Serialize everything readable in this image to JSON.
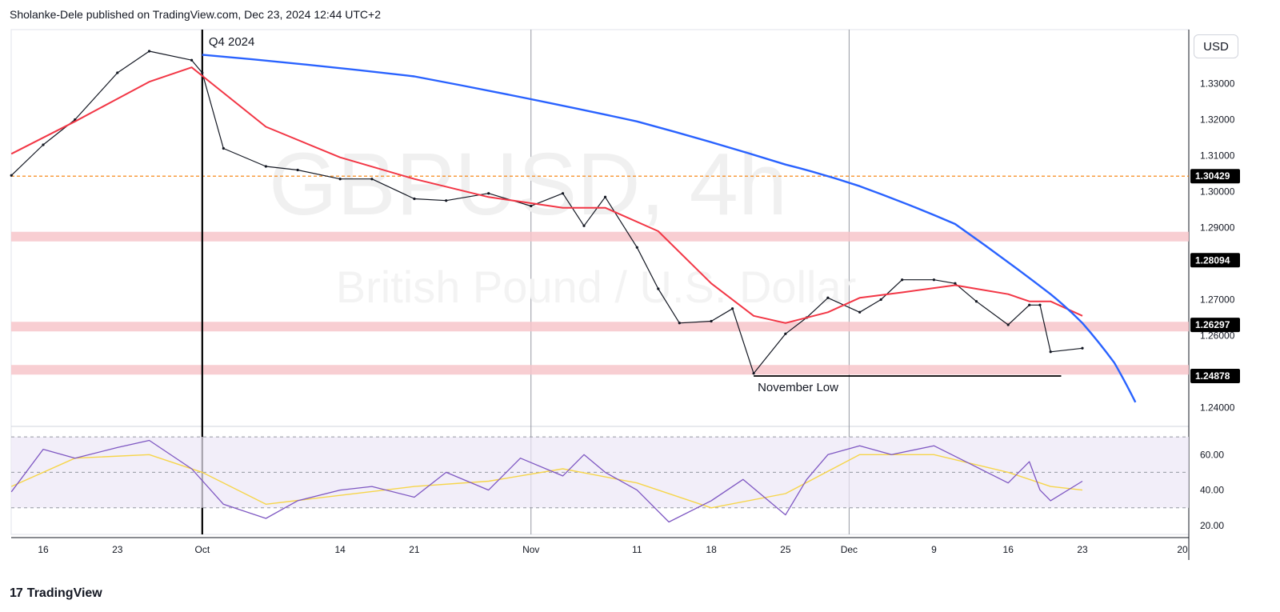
{
  "header": {
    "text": "Sholanke-Dele published on TradingView.com, Dec 23, 2024 12:44 UTC+2"
  },
  "footer": {
    "logo_text": "TradingView",
    "logo_icon": "tradingview-logo-icon"
  },
  "currency_button": {
    "label": "USD"
  },
  "watermark": {
    "symbol": "GBPUSD, 4h",
    "description": "British Pound / U.S. Dollar"
  },
  "annotations": {
    "quarter_label": "Q4 2024",
    "low_label": "November Low"
  },
  "colors": {
    "price": "#131722",
    "ema": "#f23645",
    "curve": "#2962ff",
    "zone": "#f7c5ca",
    "dashed_level": "#f57c00",
    "rsi": "#7e57c2",
    "rsi_ma": "#f6d54a",
    "rsi_band": "#ece7f7"
  },
  "chart_data": [
    {
      "type": "line",
      "title": "GBPUSD, 4h",
      "ylim": [
        1.235,
        1.345
      ],
      "y_ticks": [
        "1.33000",
        "1.32000",
        "1.31000",
        "1.30000",
        "1.29000",
        "1.27000",
        "1.26000",
        "1.24000"
      ],
      "x_ticks": [
        "16",
        "23",
        "Oct",
        "14",
        "21",
        "Nov",
        "11",
        "18",
        "25",
        "Dec",
        "9",
        "16",
        "23",
        "20"
      ],
      "price_labels": [
        "1.30429",
        "1.28094",
        "1.26297",
        "1.24878"
      ],
      "series": [
        {
          "x": [
            "Sep 13",
            "Sep 16",
            "Sep 19",
            "Sep 23",
            "Sep 26",
            "Sep 30",
            "Oct 1",
            "Oct 3",
            "Oct 7",
            "Oct 10",
            "Oct 14",
            "Oct 17",
            "Oct 21",
            "Oct 24",
            "Oct 28",
            "Nov 1",
            "Nov 4",
            "Nov 6",
            "Nov 8",
            "Nov 11",
            "Nov 13",
            "Nov 15",
            "Nov 18",
            "Nov 20",
            "Nov 22",
            "Nov 25",
            "Nov 27",
            "Nov 29",
            "Dec 2",
            "Dec 4",
            "Dec 6",
            "Dec 9",
            "Dec 11",
            "Dec 13",
            "Dec 16",
            "Dec 18",
            "Dec 19",
            "Dec 20",
            "Dec 23"
          ],
          "values": [
            1.3045,
            1.313,
            1.32,
            1.333,
            1.339,
            1.3365,
            1.333,
            1.312,
            1.307,
            1.306,
            1.3035,
            1.3035,
            1.298,
            1.2975,
            1.2995,
            1.296,
            1.2995,
            1.2905,
            1.2985,
            1.2845,
            1.273,
            1.2635,
            1.264,
            1.2675,
            1.2495,
            1.2605,
            1.265,
            1.2705,
            1.2665,
            1.27,
            1.2755,
            1.2755,
            1.2745,
            1.2695,
            1.263,
            1.2685,
            1.2685,
            1.2555,
            1.2565
          ]
        },
        {
          "x": [
            "Sep 13",
            "Sep 19",
            "Sep 26",
            "Sep 30",
            "Oct 7",
            "Oct 14",
            "Oct 21",
            "Oct 28",
            "Nov 4",
            "Nov 8",
            "Nov 13",
            "Nov 18",
            "Nov 22",
            "Nov 25",
            "Nov 29",
            "Dec 2",
            "Dec 6",
            "Dec 11",
            "Dec 13",
            "Dec 16",
            "Dec 18",
            "Dec 20",
            "Dec 23"
          ],
          "values": [
            1.3105,
            1.3195,
            1.3305,
            1.3345,
            1.318,
            1.3095,
            1.3035,
            1.2985,
            1.2955,
            1.2955,
            1.289,
            1.2745,
            1.2655,
            1.2635,
            1.2665,
            1.2705,
            1.272,
            1.274,
            1.273,
            1.2715,
            1.2695,
            1.2695,
            1.2655
          ]
        },
        {
          "x": [
            "Oct 1",
            "Oct 21",
            "Nov 11",
            "Nov 25",
            "Dec 2",
            "Dec 11",
            "Dec 20",
            "Dec 23",
            "Dec 26",
            "Dec 28"
          ],
          "values": [
            1.338,
            1.332,
            1.3195,
            1.3075,
            1.3015,
            1.291,
            1.2715,
            1.2635,
            1.2525,
            1.2415
          ]
        }
      ],
      "horizontal_levels": [
        1.30429,
        1.28094,
        1.26297,
        1.24878
      ],
      "low_line": 1.24878
    },
    {
      "type": "line",
      "title": "RSI",
      "ylim": [
        15,
        75
      ],
      "y_ticks": [
        "60.00",
        "40.00",
        "20.00"
      ],
      "band": [
        30,
        70
      ],
      "series": [
        {
          "x": [
            "Sep 13",
            "Sep 16",
            "Sep 19",
            "Sep 23",
            "Sep 26",
            "Sep 30",
            "Oct 3",
            "Oct 7",
            "Oct 10",
            "Oct 14",
            "Oct 17",
            "Oct 21",
            "Oct 24",
            "Oct 28",
            "Oct 31",
            "Nov 4",
            "Nov 6",
            "Nov 8",
            "Nov 11",
            "Nov 14",
            "Nov 18",
            "Nov 21",
            "Nov 25",
            "Nov 27",
            "Nov 29",
            "Dec 2",
            "Dec 5",
            "Dec 9",
            "Dec 12",
            "Dec 16",
            "Dec 18",
            "Dec 19",
            "Dec 20",
            "Dec 23"
          ],
          "values": [
            39,
            63,
            58,
            64,
            68,
            52,
            32,
            24,
            34,
            40,
            42,
            36,
            50,
            40,
            58,
            48,
            60,
            50,
            40,
            22,
            34,
            46,
            26,
            46,
            60,
            65,
            60,
            65,
            56,
            44,
            56,
            40,
            34,
            45
          ]
        },
        {
          "x": [
            "Sep 13",
            "Sep 19",
            "Sep 26",
            "Oct 1",
            "Oct 7",
            "Oct 14",
            "Oct 21",
            "Oct 28",
            "Nov 4",
            "Nov 11",
            "Nov 18",
            "Nov 25",
            "Dec 2",
            "Dec 9",
            "Dec 16",
            "Dec 20",
            "Dec 23"
          ],
          "values": [
            42,
            58,
            60,
            50,
            32,
            37,
            42,
            45,
            52,
            44,
            30,
            38,
            60,
            60,
            50,
            42,
            40
          ]
        }
      ]
    }
  ]
}
